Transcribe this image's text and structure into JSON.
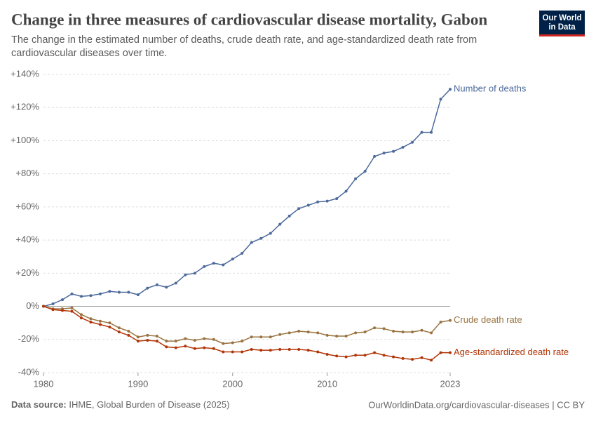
{
  "chart_data": {
    "type": "line",
    "title": "Change in three measures of cardiovascular disease mortality, Gabon",
    "subtitle": "The change in the estimated number of deaths, crude death rate, and age-standardized death rate from cardiovascular diseases over time.",
    "x": [
      1980,
      1981,
      1982,
      1983,
      1984,
      1985,
      1986,
      1987,
      1988,
      1989,
      1990,
      1991,
      1992,
      1993,
      1994,
      1995,
      1996,
      1997,
      1998,
      1999,
      2000,
      2001,
      2002,
      2003,
      2004,
      2005,
      2006,
      2007,
      2008,
      2009,
      2010,
      2011,
      2012,
      2013,
      2014,
      2015,
      2016,
      2017,
      2018,
      2019,
      2020,
      2021,
      2022,
      2023
    ],
    "series": [
      {
        "name": "Number of deaths",
        "color": "#4c6a9c",
        "values": [
          0,
          1.5,
          4,
          7.5,
          6,
          6.5,
          7.5,
          9,
          8.5,
          8.5,
          7,
          11,
          13,
          11.5,
          14,
          19,
          20,
          24,
          26,
          25,
          28.5,
          32,
          38.5,
          41,
          44,
          49.5,
          54.5,
          59,
          61,
          63,
          63.5,
          65,
          69.5,
          77,
          81.5,
          90.5,
          92.5,
          93.5,
          96,
          99,
          105,
          105,
          125,
          131
        ]
      },
      {
        "name": "Crude death rate",
        "color": "#9a7340",
        "values": [
          0,
          -1.5,
          -1.5,
          -1,
          -5,
          -7.5,
          -9,
          -10,
          -13,
          -15,
          -18.5,
          -17.5,
          -18,
          -21,
          -21,
          -19.5,
          -20.5,
          -19.5,
          -20,
          -22.5,
          -22,
          -21,
          -18.5,
          -18.5,
          -18.5,
          -17,
          -16,
          -15,
          -15.5,
          -16,
          -17.5,
          -18,
          -18,
          -16,
          -15.5,
          -13,
          -13.5,
          -15,
          -15.5,
          -15.5,
          -14.5,
          -16,
          -9.5,
          -8.5
        ]
      },
      {
        "name": "Age-standardized death rate",
        "color": "#b13507",
        "values": [
          0,
          -2,
          -2.5,
          -3,
          -7,
          -9.5,
          -11,
          -12.5,
          -15.5,
          -17.5,
          -21,
          -20.5,
          -21,
          -24.5,
          -25,
          -24,
          -25.5,
          -25,
          -25.5,
          -27.5,
          -27.5,
          -27.5,
          -26,
          -26.5,
          -26.5,
          -26,
          -26,
          -26,
          -26.5,
          -27.5,
          -29,
          -30,
          -30.5,
          -29.5,
          -29.5,
          -28,
          -29.5,
          -30.5,
          -31.5,
          -32,
          -31,
          -32.5,
          -28,
          -28
        ]
      }
    ],
    "xlim": [
      1980,
      2023
    ],
    "xticks": [
      1980,
      1990,
      2000,
      2010,
      2023
    ],
    "ylim": [
      -40,
      140
    ],
    "yticks": [
      {
        "value": -40,
        "label": "-40%"
      },
      {
        "value": -20,
        "label": "-20%"
      },
      {
        "value": 0,
        "label": "0%"
      },
      {
        "value": 20,
        "label": "+20%"
      },
      {
        "value": 40,
        "label": "+40%"
      },
      {
        "value": 60,
        "label": "+60%"
      },
      {
        "value": 80,
        "label": "+80%"
      },
      {
        "value": 100,
        "label": "+100%"
      },
      {
        "value": 120,
        "label": "+120%"
      },
      {
        "value": 140,
        "label": "+140%"
      }
    ],
    "grid": true
  },
  "logo": {
    "line1": "Our World",
    "line2": "in Data"
  },
  "footer": {
    "source_label": "Data source:",
    "source": "IHME, Global Burden of Disease (2025)",
    "url": "OurWorldinData.org/cardiovascular-diseases | CC BY"
  }
}
